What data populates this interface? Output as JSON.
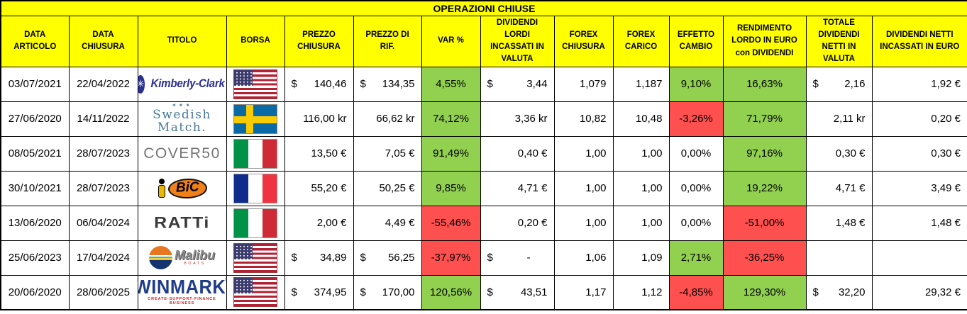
{
  "title": "OPERAZIONI CHIUSE",
  "colors": {
    "header_bg": "#FFFF00",
    "positive_bg": "#92D050",
    "negative_bg": "#FF5050",
    "grid": "#000000",
    "text": "#000000"
  },
  "columns": [
    {
      "id": "data_articolo",
      "label": "DATA ARTICOLO"
    },
    {
      "id": "data_chiusura",
      "label": "DATA CHIUSURA"
    },
    {
      "id": "titolo",
      "label": "TITOLO"
    },
    {
      "id": "borsa",
      "label": "BORSA"
    },
    {
      "id": "prezzo_chiusura",
      "label": "PREZZO CHIUSURA"
    },
    {
      "id": "prezzo_rif",
      "label": "PREZZO DI RIF."
    },
    {
      "id": "var_pct",
      "label": "VAR %"
    },
    {
      "id": "dividendi_lordi",
      "label": "DIVIDENDI LORDI INCASSATI IN VALUTA"
    },
    {
      "id": "forex_chiusura",
      "label": "FOREX CHIUSURA"
    },
    {
      "id": "forex_carico",
      "label": "FOREX CARICO"
    },
    {
      "id": "effetto_cambio",
      "label": "EFFETTO CAMBIO"
    },
    {
      "id": "rendimento",
      "label": "RENDIMENTO LORDO IN EURO con DIVIDENDI"
    },
    {
      "id": "totale_dividendi",
      "label": "TOTALE DIVIDENDI NETTI IN VALUTA"
    },
    {
      "id": "dividendi_netti_euro",
      "label": "DIVIDENDI NETTI INCASSATI IN EURO"
    }
  ],
  "rows": [
    {
      "data_articolo": "03/07/2021",
      "data_chiusura": "22/04/2022",
      "titolo": {
        "brand": "kimberly-clark",
        "badge_icon": "✳",
        "text": "Kimberly-Clark"
      },
      "borsa": {
        "flag": "us"
      },
      "prezzo_chiusura": {
        "sym": "$",
        "val": "140,46"
      },
      "prezzo_rif": {
        "sym": "$",
        "val": "134,35"
      },
      "var_pct": {
        "text": "4,55%",
        "bg": "positive"
      },
      "dividendi_lordi": {
        "sym": "$",
        "val": "3,44"
      },
      "forex_chiusura": "1,079",
      "forex_carico": "1,187",
      "effetto_cambio": {
        "text": "9,10%",
        "bg": "positive"
      },
      "rendimento": {
        "text": "16,63%",
        "bg": "positive"
      },
      "totale_dividendi": {
        "sym": "$",
        "val": "2,16"
      },
      "dividendi_netti_euro": "1,92 €"
    },
    {
      "data_articolo": "27/06/2020",
      "data_chiusura": "14/11/2022",
      "titolo": {
        "brand": "swedish-match",
        "stars": "✶✶✶",
        "lines": [
          "Swedish",
          "Match."
        ]
      },
      "borsa": {
        "flag": "se"
      },
      "prezzo_chiusura": "116,00 kr",
      "prezzo_rif": "66,62 kr",
      "var_pct": {
        "text": "74,12%",
        "bg": "positive"
      },
      "dividendi_lordi": "3,36 kr",
      "forex_chiusura": "10,82",
      "forex_carico": "10,48",
      "effetto_cambio": {
        "text": "-3,26%",
        "bg": "negative"
      },
      "rendimento": {
        "text": "71,79%",
        "bg": "positive"
      },
      "totale_dividendi": "2,11 kr",
      "dividendi_netti_euro": "0,20 €"
    },
    {
      "data_articolo": "08/05/2021",
      "data_chiusura": "28/07/2023",
      "titolo": {
        "brand": "cover50",
        "text": "COVER50"
      },
      "borsa": {
        "flag": "it"
      },
      "prezzo_chiusura": "13,50 €",
      "prezzo_rif": "7,05 €",
      "var_pct": {
        "text": "91,49%",
        "bg": "positive"
      },
      "dividendi_lordi": "0,40 €",
      "forex_chiusura": "1,00",
      "forex_carico": "1,00",
      "effetto_cambio": {
        "text": "0,00%",
        "bg": null
      },
      "rendimento": {
        "text": "97,16%",
        "bg": "positive"
      },
      "totale_dividendi": "0,30 €",
      "dividendi_netti_euro": "0,30 €"
    },
    {
      "data_articolo": "30/10/2021",
      "data_chiusura": "28/07/2023",
      "titolo": {
        "brand": "bic",
        "text": "BiC"
      },
      "borsa": {
        "flag": "fr"
      },
      "prezzo_chiusura": "55,20 €",
      "prezzo_rif": "50,25 €",
      "var_pct": {
        "text": "9,85%",
        "bg": "positive"
      },
      "dividendi_lordi": "4,71 €",
      "forex_chiusura": "1,00",
      "forex_carico": "1,00",
      "effetto_cambio": {
        "text": "0,00%",
        "bg": null
      },
      "rendimento": {
        "text": "19,22%",
        "bg": "positive"
      },
      "totale_dividendi": "4,71 €",
      "dividendi_netti_euro": "3,49 €"
    },
    {
      "data_articolo": "13/06/2020",
      "data_chiusura": "06/04/2024",
      "titolo": {
        "brand": "ratti",
        "text": "RATTi"
      },
      "borsa": {
        "flag": "it"
      },
      "prezzo_chiusura": "2,00 €",
      "prezzo_rif": "4,49 €",
      "var_pct": {
        "text": "-55,46%",
        "bg": "negative"
      },
      "dividendi_lordi": "0,20 €",
      "forex_chiusura": "1,00",
      "forex_carico": "1,00",
      "effetto_cambio": {
        "text": "0,00%",
        "bg": null
      },
      "rendimento": {
        "text": "-51,00%",
        "bg": "negative"
      },
      "totale_dividendi": "1,48 €",
      "dividendi_netti_euro": "1,48 €"
    },
    {
      "data_articolo": "25/06/2023",
      "data_chiusura": "17/04/2024",
      "titolo": {
        "brand": "malibu",
        "text": "Malibu",
        "sub": "BOATS"
      },
      "borsa": {
        "flag": "us"
      },
      "prezzo_chiusura": {
        "sym": "$",
        "val": "34,89"
      },
      "prezzo_rif": {
        "sym": "$",
        "val": "56,25"
      },
      "var_pct": {
        "text": "-37,97%",
        "bg": "negative"
      },
      "dividendi_lordi": {
        "sym": "$",
        "val": "-"
      },
      "forex_chiusura": "1,06",
      "forex_carico": "1,09",
      "effetto_cambio": {
        "text": "2,71%",
        "bg": "positive"
      },
      "rendimento": {
        "text": "-36,25%",
        "bg": "negative"
      },
      "totale_dividendi": null,
      "dividendi_netti_euro": null
    },
    {
      "data_articolo": "20/06/2020",
      "data_chiusura": "28/06/2025",
      "titolo": {
        "brand": "winmark",
        "text": "WINMARK",
        "reg": "®",
        "sub": "CREATE-SUPPORT-FINANCE BUSINESS"
      },
      "borsa": {
        "flag": "us"
      },
      "prezzo_chiusura": {
        "sym": "$",
        "val": "374,95"
      },
      "prezzo_rif": {
        "sym": "$",
        "val": "170,00"
      },
      "var_pct": {
        "text": "120,56%",
        "bg": "positive"
      },
      "dividendi_lordi": {
        "sym": "$",
        "val": "43,51"
      },
      "forex_chiusura": "1,17",
      "forex_carico": "1,12",
      "effetto_cambio": {
        "text": "-4,85%",
        "bg": "negative"
      },
      "rendimento": {
        "text": "129,30%",
        "bg": "positive"
      },
      "totale_dividendi": {
        "sym": "$",
        "val": "32,20"
      },
      "dividendi_netti_euro": "29,32 €"
    }
  ]
}
